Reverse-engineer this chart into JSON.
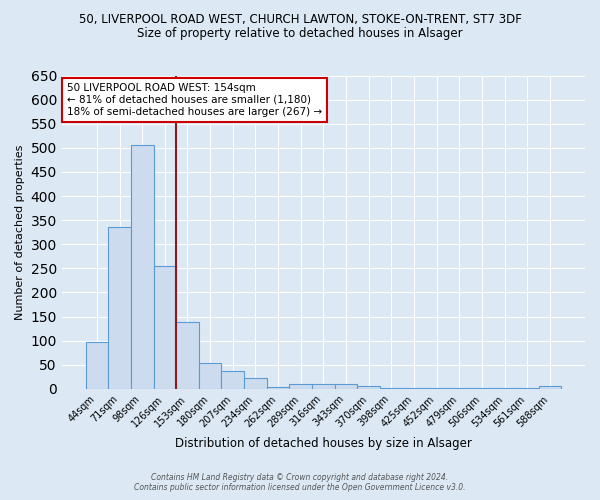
{
  "title_line1": "50, LIVERPOOL ROAD WEST, CHURCH LAWTON, STOKE-ON-TRENT, ST7 3DF",
  "title_line2": "Size of property relative to detached houses in Alsager",
  "xlabel": "Distribution of detached houses by size in Alsager",
  "ylabel": "Number of detached properties",
  "bar_labels": [
    "44sqm",
    "71sqm",
    "98sqm",
    "126sqm",
    "153sqm",
    "180sqm",
    "207sqm",
    "234sqm",
    "262sqm",
    "289sqm",
    "316sqm",
    "343sqm",
    "370sqm",
    "398sqm",
    "425sqm",
    "452sqm",
    "479sqm",
    "506sqm",
    "534sqm",
    "561sqm",
    "588sqm"
  ],
  "bar_values": [
    97,
    335,
    505,
    255,
    138,
    53,
    38,
    22,
    4,
    10,
    10,
    10,
    6,
    1,
    1,
    1,
    1,
    1,
    1,
    1,
    5
  ],
  "bar_color": "#ccdcee",
  "bar_edge_color": "#5b9bd5",
  "background_color": "#dce9f5",
  "grid_color": "#ffffff",
  "vline_x_idx": 4,
  "vline_color": "#8b1a1a",
  "annotation_line1": "50 LIVERPOOL ROAD WEST: 154sqm",
  "annotation_line2": "← 81% of detached houses are smaller (1,180)",
  "annotation_line3": "18% of semi-detached houses are larger (267) →",
  "annotation_box_color": "#ffffff",
  "annotation_box_edge": "#cc0000",
  "footer_text": "Contains HM Land Registry data © Crown copyright and database right 2024.\nContains public sector information licensed under the Open Government Licence v3.0.",
  "ylim": [
    0,
    650
  ],
  "yticks": [
    0,
    50,
    100,
    150,
    200,
    250,
    300,
    350,
    400,
    450,
    500,
    550,
    600,
    650
  ]
}
